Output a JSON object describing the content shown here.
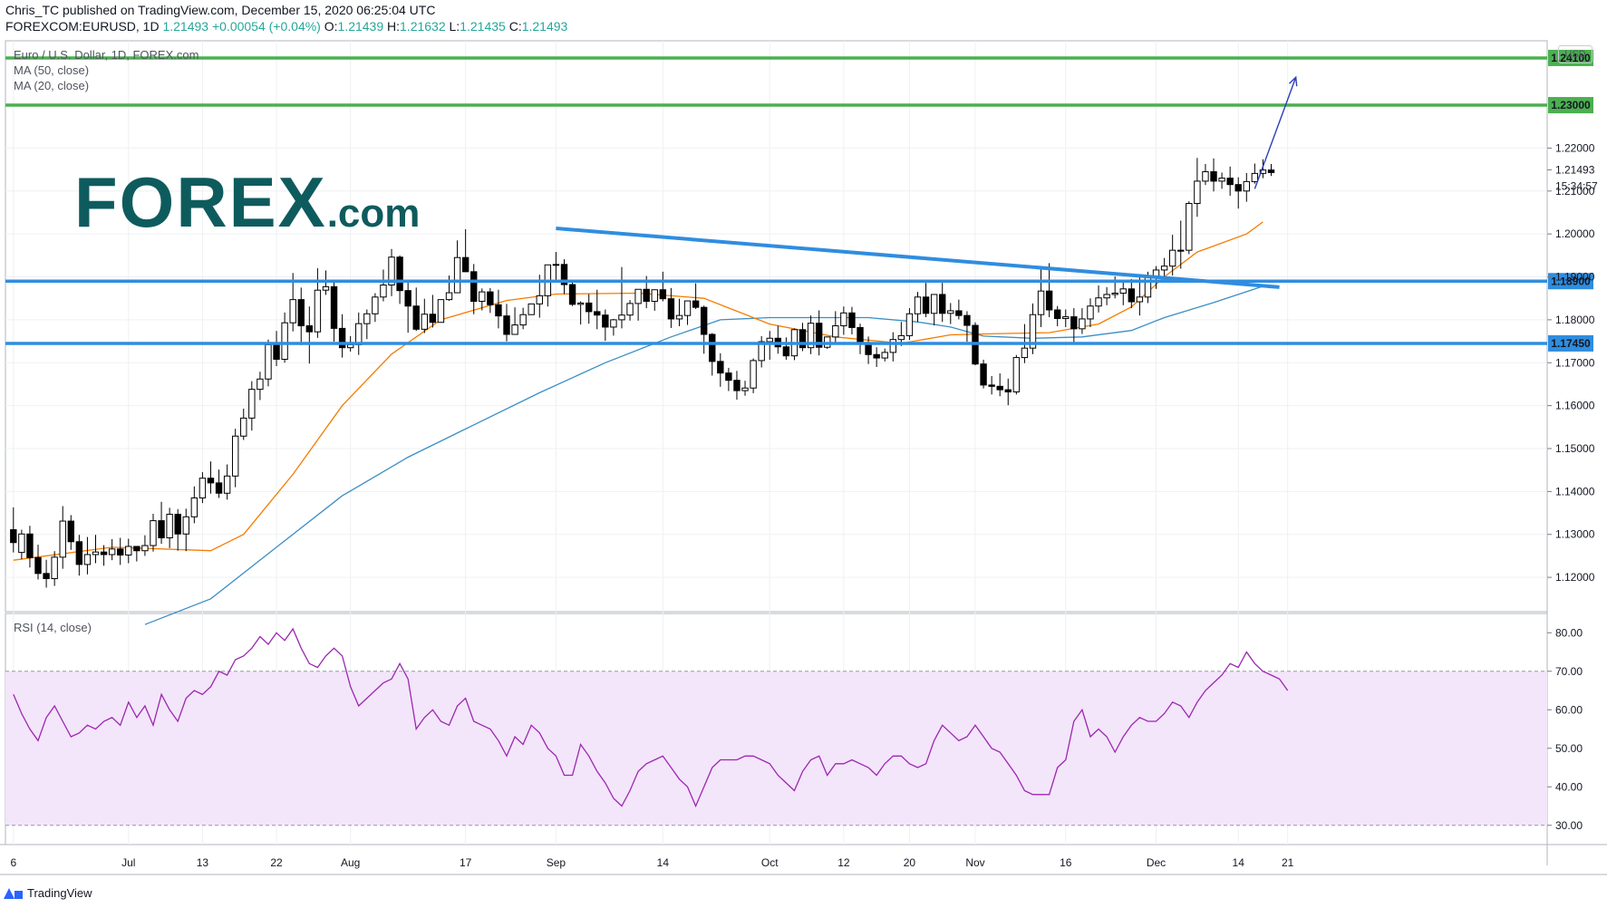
{
  "header": {
    "line1": "Chris_TC published on TradingView.com, December 15, 2020 06:25:04 UTC",
    "symbol": "FOREXCOM:EURUSD, 1D",
    "last": "1.21493",
    "change": "+0.00054 (+0.04%)",
    "o_label": "O:",
    "o_val": "1.21439",
    "h_label": "H:",
    "h_val": "1.21632",
    "l_label": "L:",
    "l_val": "1.21435",
    "c_label": "C:",
    "c_val": "1.21493"
  },
  "legend": {
    "title": "Euro / U.S. Dollar, 1D, FOREX.com",
    "ma50": "MA (50, close)",
    "ma20": "MA (20, close)",
    "rsi": "RSI (14, close)"
  },
  "logo": {
    "main": "FOREX",
    "suffix": ".com"
  },
  "currency": "USD",
  "footer": {
    "brand": "TradingView"
  },
  "colors": {
    "up": "#ffffff",
    "down": "#000000",
    "blue_line": "#2f8ddf",
    "green_line": "#4caf50",
    "ma20": "#f57c00",
    "ma50": "#3a8ec5",
    "rsi": "#9c27b0",
    "rsi_band": "#f3e5fa",
    "arrow": "#2b3eb7"
  },
  "chart_data": {
    "type": "candlestick",
    "price_axis": {
      "min": 1.112,
      "max": 1.245,
      "ticks": [
        1.22,
        1.21,
        1.2,
        1.19,
        1.18,
        1.17,
        1.16,
        1.15,
        1.14,
        1.13,
        1.12
      ]
    },
    "current_price": {
      "label": "1.21493",
      "value": 1.21493,
      "countdown": "15:34:57"
    },
    "x_labels": [
      {
        "label": "6",
        "idx": 0
      },
      {
        "label": "Jul",
        "idx": 14
      },
      {
        "label": "13",
        "idx": 23
      },
      {
        "label": "22",
        "idx": 32
      },
      {
        "label": "Aug",
        "idx": 41
      },
      {
        "label": "17",
        "idx": 55
      },
      {
        "label": "Sep",
        "idx": 66
      },
      {
        "label": "14",
        "idx": 79
      },
      {
        "label": "Oct",
        "idx": 92
      },
      {
        "label": "12",
        "idx": 101
      },
      {
        "label": "20",
        "idx": 109
      },
      {
        "label": "Nov",
        "idx": 117
      },
      {
        "label": "16",
        "idx": 128
      },
      {
        "label": "Dec",
        "idx": 139
      },
      {
        "label": "14",
        "idx": 149
      },
      {
        "label": "21",
        "idx": 155
      }
    ],
    "horizontal_levels": [
      {
        "value": 1.241,
        "label": "1.24100",
        "color": "green"
      },
      {
        "value": 1.23,
        "label": "1.23000",
        "color": "green"
      },
      {
        "value": 1.189,
        "label": "1.18900",
        "color": "blue"
      },
      {
        "value": 1.1745,
        "label": "1.17450",
        "color": "blue"
      }
    ],
    "trendline": {
      "start": {
        "idx": 66,
        "price": 1.2013
      },
      "end": {
        "idx": 154,
        "price": 1.1876
      }
    },
    "projection_arrow": {
      "start": {
        "idx": 151,
        "price": 1.2105
      },
      "end": {
        "idx": 156,
        "price": 1.2365
      }
    },
    "candles": [
      [
        1.1311,
        1.1363,
        1.1281,
        1.1258
      ],
      [
        1.1258,
        1.1311,
        1.1301,
        1.1242
      ],
      [
        1.1301,
        1.132,
        1.1246,
        1.1223
      ],
      [
        1.1246,
        1.1276,
        1.1209,
        1.1195
      ],
      [
        1.1209,
        1.1241,
        1.1197,
        1.1176
      ],
      [
        1.1197,
        1.1261,
        1.1247,
        1.118
      ],
      [
        1.1247,
        1.1366,
        1.1331,
        1.122
      ],
      [
        1.1331,
        1.1345,
        1.1283,
        1.1264
      ],
      [
        1.1283,
        1.1299,
        1.123,
        1.1204
      ],
      [
        1.123,
        1.1294,
        1.1253,
        1.1207
      ],
      [
        1.1253,
        1.1299,
        1.1259,
        1.1233
      ],
      [
        1.1259,
        1.1275,
        1.1253,
        1.1227
      ],
      [
        1.1253,
        1.1289,
        1.1266,
        1.124
      ],
      [
        1.1266,
        1.1292,
        1.1252,
        1.1229
      ],
      [
        1.1252,
        1.129,
        1.1272,
        1.1233
      ],
      [
        1.1272,
        1.1273,
        1.1262,
        1.1237
      ],
      [
        1.1262,
        1.1298,
        1.1274,
        1.125
      ],
      [
        1.1274,
        1.1348,
        1.1332,
        1.126
      ],
      [
        1.1332,
        1.1376,
        1.1292,
        1.1278
      ],
      [
        1.1292,
        1.1362,
        1.1347,
        1.1268
      ],
      [
        1.1347,
        1.1359,
        1.1301,
        1.1262
      ],
      [
        1.1301,
        1.136,
        1.1341,
        1.1261
      ],
      [
        1.1341,
        1.1412,
        1.1385,
        1.1326
      ],
      [
        1.1385,
        1.1445,
        1.1431,
        1.1373
      ],
      [
        1.1431,
        1.147,
        1.142,
        1.1395
      ],
      [
        1.142,
        1.1451,
        1.1396,
        1.1385
      ],
      [
        1.1396,
        1.1463,
        1.1436,
        1.1381
      ],
      [
        1.1436,
        1.1546,
        1.1529,
        1.141
      ],
      [
        1.1529,
        1.1593,
        1.1571,
        1.152
      ],
      [
        1.1571,
        1.1657,
        1.1638,
        1.1542
      ],
      [
        1.1638,
        1.1679,
        1.1662,
        1.1613
      ],
      [
        1.1662,
        1.1754,
        1.1742,
        1.1645
      ],
      [
        1.1742,
        1.1774,
        1.1708,
        1.1692
      ],
      [
        1.1708,
        1.1817,
        1.1793,
        1.17
      ],
      [
        1.1793,
        1.1909,
        1.1847,
        1.1773
      ],
      [
        1.1847,
        1.1875,
        1.1786,
        1.1741
      ],
      [
        1.1786,
        1.1831,
        1.1772,
        1.1698
      ],
      [
        1.1772,
        1.192,
        1.1869,
        1.1758
      ],
      [
        1.1869,
        1.1915,
        1.1877,
        1.1858
      ],
      [
        1.1877,
        1.1887,
        1.178,
        1.1749
      ],
      [
        1.178,
        1.1813,
        1.1735,
        1.1712
      ],
      [
        1.1735,
        1.1762,
        1.1742,
        1.1726
      ],
      [
        1.1742,
        1.1817,
        1.1791,
        1.1718
      ],
      [
        1.1791,
        1.1824,
        1.1814,
        1.1755
      ],
      [
        1.1814,
        1.1862,
        1.1853,
        1.1795
      ],
      [
        1.1853,
        1.1917,
        1.1881,
        1.1843
      ],
      [
        1.1881,
        1.1965,
        1.1946,
        1.1855
      ],
      [
        1.1946,
        1.195,
        1.1868,
        1.1837
      ],
      [
        1.1868,
        1.1891,
        1.1832,
        1.177
      ],
      [
        1.1832,
        1.1875,
        1.1778,
        1.1774
      ],
      [
        1.1778,
        1.1849,
        1.1813,
        1.1769
      ],
      [
        1.1813,
        1.1858,
        1.1794,
        1.1782
      ],
      [
        1.1794,
        1.1834,
        1.1847,
        1.18
      ],
      [
        1.1847,
        1.1903,
        1.1863,
        1.1844
      ],
      [
        1.1863,
        1.1985,
        1.1945,
        1.1864
      ],
      [
        1.1945,
        1.2011,
        1.1912,
        1.1911
      ],
      [
        1.1912,
        1.193,
        1.1843,
        1.1813
      ],
      [
        1.1843,
        1.1873,
        1.1865,
        1.1822
      ],
      [
        1.1865,
        1.1874,
        1.1835,
        1.1816
      ],
      [
        1.1835,
        1.187,
        1.1809,
        1.178
      ],
      [
        1.1809,
        1.1837,
        1.1766,
        1.175
      ],
      [
        1.1766,
        1.1829,
        1.1788,
        1.1766
      ],
      [
        1.1788,
        1.1828,
        1.1812,
        1.1778
      ],
      [
        1.1812,
        1.1833,
        1.1837,
        1.1817
      ],
      [
        1.1837,
        1.1905,
        1.1856,
        1.1805
      ],
      [
        1.1856,
        1.1911,
        1.1928,
        1.1831
      ],
      [
        1.1928,
        1.1958,
        1.1929,
        1.1891
      ],
      [
        1.1929,
        1.1941,
        1.1882,
        1.186
      ],
      [
        1.1882,
        1.1893,
        1.1836,
        1.1832
      ],
      [
        1.1836,
        1.1843,
        1.1839,
        1.1789
      ],
      [
        1.1839,
        1.186,
        1.1819,
        1.1791
      ],
      [
        1.1819,
        1.187,
        1.1811,
        1.1778
      ],
      [
        1.1811,
        1.1824,
        1.1783,
        1.1751
      ],
      [
        1.1783,
        1.1802,
        1.18,
        1.1763
      ],
      [
        1.18,
        1.1923,
        1.1811,
        1.178
      ],
      [
        1.1811,
        1.1846,
        1.1838,
        1.1798
      ],
      [
        1.1838,
        1.1859,
        1.1871,
        1.1798
      ],
      [
        1.1871,
        1.1902,
        1.1843,
        1.1827
      ],
      [
        1.1843,
        1.187,
        1.187,
        1.1821
      ],
      [
        1.187,
        1.1912,
        1.1849,
        1.1843
      ],
      [
        1.1849,
        1.1874,
        1.1802,
        1.1781
      ],
      [
        1.1802,
        1.1849,
        1.181,
        1.1785
      ],
      [
        1.181,
        1.1822,
        1.1844,
        1.1788
      ],
      [
        1.1844,
        1.1885,
        1.1829,
        1.1825
      ],
      [
        1.1829,
        1.1833,
        1.1766,
        1.1721
      ],
      [
        1.1766,
        1.1769,
        1.1703,
        1.167
      ],
      [
        1.1703,
        1.1722,
        1.1676,
        1.1644
      ],
      [
        1.1676,
        1.1688,
        1.1659,
        1.1634
      ],
      [
        1.1659,
        1.1681,
        1.1635,
        1.1614
      ],
      [
        1.1635,
        1.1658,
        1.1641,
        1.1623
      ],
      [
        1.1641,
        1.171,
        1.1705,
        1.1629
      ],
      [
        1.1705,
        1.1762,
        1.1749,
        1.1689
      ],
      [
        1.1749,
        1.1774,
        1.1757,
        1.1707
      ],
      [
        1.1757,
        1.1786,
        1.1737,
        1.1721
      ],
      [
        1.1737,
        1.1759,
        1.1716,
        1.1707
      ],
      [
        1.1716,
        1.178,
        1.1777,
        1.1706
      ],
      [
        1.1777,
        1.1793,
        1.1735,
        1.1727
      ],
      [
        1.1735,
        1.181,
        1.1792,
        1.172
      ],
      [
        1.1792,
        1.1822,
        1.1736,
        1.1717
      ],
      [
        1.1736,
        1.1756,
        1.176,
        1.1732
      ],
      [
        1.176,
        1.182,
        1.1786,
        1.1745
      ],
      [
        1.1786,
        1.1831,
        1.1816,
        1.1765
      ],
      [
        1.1816,
        1.183,
        1.1782,
        1.1766
      ],
      [
        1.1782,
        1.1791,
        1.1746,
        1.172
      ],
      [
        1.1746,
        1.1761,
        1.1719,
        1.1697
      ],
      [
        1.1719,
        1.1736,
        1.1711,
        1.169
      ],
      [
        1.1711,
        1.1733,
        1.1724,
        1.1703
      ],
      [
        1.1724,
        1.1771,
        1.1754,
        1.1703
      ],
      [
        1.1754,
        1.1795,
        1.1763,
        1.1739
      ],
      [
        1.1763,
        1.1827,
        1.1814,
        1.1753
      ],
      [
        1.1814,
        1.1865,
        1.1853,
        1.1795
      ],
      [
        1.1853,
        1.1886,
        1.1815,
        1.1806
      ],
      [
        1.1815,
        1.1847,
        1.1859,
        1.1787
      ],
      [
        1.1859,
        1.1886,
        1.1815,
        1.1795
      ],
      [
        1.1815,
        1.1839,
        1.1821,
        1.179
      ],
      [
        1.1821,
        1.1847,
        1.181,
        1.1801
      ],
      [
        1.181,
        1.182,
        1.1787,
        1.1749
      ],
      [
        1.1787,
        1.1794,
        1.1697,
        1.1694
      ],
      [
        1.1697,
        1.1707,
        1.1648,
        1.164
      ],
      [
        1.1648,
        1.1669,
        1.1645,
        1.1626
      ],
      [
        1.1645,
        1.1675,
        1.1637,
        1.1622
      ],
      [
        1.1637,
        1.1663,
        1.1632,
        1.1601
      ],
      [
        1.1632,
        1.1718,
        1.1712,
        1.1626
      ],
      [
        1.1712,
        1.179,
        1.1734,
        1.1699
      ],
      [
        1.1734,
        1.1838,
        1.1812,
        1.172
      ],
      [
        1.1812,
        1.192,
        1.1867,
        1.1783
      ],
      [
        1.1867,
        1.1932,
        1.1823,
        1.1806
      ],
      [
        1.1823,
        1.1832,
        1.1803,
        1.1785
      ],
      [
        1.1803,
        1.1824,
        1.1807,
        1.1783
      ],
      [
        1.1807,
        1.1827,
        1.1779,
        1.1747
      ],
      [
        1.1779,
        1.1827,
        1.1802,
        1.1767
      ],
      [
        1.1802,
        1.185,
        1.1832,
        1.1783
      ],
      [
        1.1832,
        1.188,
        1.1851,
        1.1817
      ],
      [
        1.1851,
        1.1876,
        1.1859,
        1.1834
      ],
      [
        1.1859,
        1.1901,
        1.1862,
        1.185
      ],
      [
        1.1862,
        1.1892,
        1.1872,
        1.1834
      ],
      [
        1.1872,
        1.1895,
        1.1842,
        1.1827
      ],
      [
        1.1842,
        1.1901,
        1.1853,
        1.181
      ],
      [
        1.1853,
        1.1912,
        1.1899,
        1.1839
      ],
      [
        1.1899,
        1.1925,
        1.1916,
        1.1872
      ],
      [
        1.1916,
        1.1944,
        1.1925,
        1.19
      ],
      [
        1.1925,
        1.1998,
        1.1962,
        1.1903
      ],
      [
        1.1962,
        1.2031,
        1.1962,
        1.1919
      ],
      [
        1.1962,
        1.2076,
        1.2071,
        1.1953
      ],
      [
        1.2071,
        1.2177,
        1.2123,
        1.204
      ],
      [
        1.2123,
        1.2163,
        1.2145,
        1.2114
      ],
      [
        1.2145,
        1.2176,
        1.2123,
        1.2099
      ],
      [
        1.2123,
        1.2143,
        1.213,
        1.2105
      ],
      [
        1.213,
        1.2157,
        1.2115,
        1.2089
      ],
      [
        1.2115,
        1.2132,
        1.21,
        1.2059
      ],
      [
        1.21,
        1.2142,
        1.2122,
        1.2075
      ],
      [
        1.2122,
        1.2164,
        1.2141,
        1.2117
      ],
      [
        1.2141,
        1.2174,
        1.2149,
        1.213
      ],
      [
        1.2149,
        1.2163,
        1.2143,
        1.2135
      ]
    ],
    "ma20": [
      [
        0,
        1.124
      ],
      [
        12,
        1.127
      ],
      [
        24,
        1.1262
      ],
      [
        28,
        1.13
      ],
      [
        34,
        1.144
      ],
      [
        40,
        1.16
      ],
      [
        46,
        1.172
      ],
      [
        52,
        1.18
      ],
      [
        60,
        1.1845
      ],
      [
        66,
        1.186
      ],
      [
        76,
        1.1862
      ],
      [
        84,
        1.185
      ],
      [
        92,
        1.179
      ],
      [
        100,
        1.176
      ],
      [
        108,
        1.1745
      ],
      [
        114,
        1.1765
      ],
      [
        120,
        1.1768
      ],
      [
        126,
        1.177
      ],
      [
        132,
        1.179
      ],
      [
        136,
        1.183
      ],
      [
        140,
        1.19
      ],
      [
        144,
        1.1958
      ],
      [
        150,
        1.2
      ],
      [
        152,
        1.2028
      ]
    ],
    "ma50": [
      [
        16,
        1.109
      ],
      [
        24,
        1.115
      ],
      [
        32,
        1.127
      ],
      [
        40,
        1.139
      ],
      [
        48,
        1.148
      ],
      [
        56,
        1.1555
      ],
      [
        64,
        1.163
      ],
      [
        72,
        1.17
      ],
      [
        80,
        1.176
      ],
      [
        86,
        1.18
      ],
      [
        92,
        1.1805
      ],
      [
        98,
        1.1805
      ],
      [
        104,
        1.1805
      ],
      [
        110,
        1.1795
      ],
      [
        114,
        1.1783
      ],
      [
        118,
        1.1762
      ],
      [
        124,
        1.1757
      ],
      [
        130,
        1.176
      ],
      [
        136,
        1.1775
      ],
      [
        140,
        1.1805
      ],
      [
        146,
        1.184
      ],
      [
        152,
        1.1878
      ]
    ],
    "rsi_axis": {
      "min": 25,
      "max": 85,
      "ticks": [
        80,
        70,
        60,
        50,
        40,
        30
      ],
      "overbought": 70,
      "oversold": 30
    },
    "rsi": [
      64,
      59,
      55,
      52,
      58,
      61,
      57,
      53,
      54,
      56,
      55,
      57,
      58,
      56,
      62,
      58,
      61,
      56,
      64,
      60,
      57,
      63,
      65,
      64,
      66,
      70,
      69,
      73,
      74,
      76,
      79,
      77,
      80,
      78,
      81,
      76,
      72,
      71,
      74,
      76,
      74,
      66,
      61,
      63,
      65,
      67,
      68,
      72,
      68,
      55,
      58,
      60,
      57,
      56,
      61,
      63,
      57,
      56,
      55,
      52,
      48,
      53,
      51,
      56,
      54,
      50,
      48,
      43,
      43,
      51,
      48,
      44,
      41,
      37,
      35,
      39,
      44,
      46,
      47,
      48,
      45,
      42,
      40,
      35,
      40,
      45,
      47,
      47,
      47,
      48,
      48,
      47,
      46,
      43,
      41,
      39,
      44,
      47,
      48,
      43,
      46,
      46,
      47,
      46,
      45,
      43,
      46,
      48,
      48,
      46,
      45,
      46,
      52,
      56,
      54,
      52,
      53,
      56,
      53,
      50,
      49,
      46,
      43,
      39,
      38,
      38,
      38,
      45,
      47,
      57,
      60,
      53,
      55,
      53,
      49,
      53,
      56,
      58,
      57,
      57,
      59,
      62,
      61,
      58,
      62,
      65,
      67,
      69,
      72,
      71,
      75,
      72,
      70,
      69,
      68,
      65
    ]
  }
}
